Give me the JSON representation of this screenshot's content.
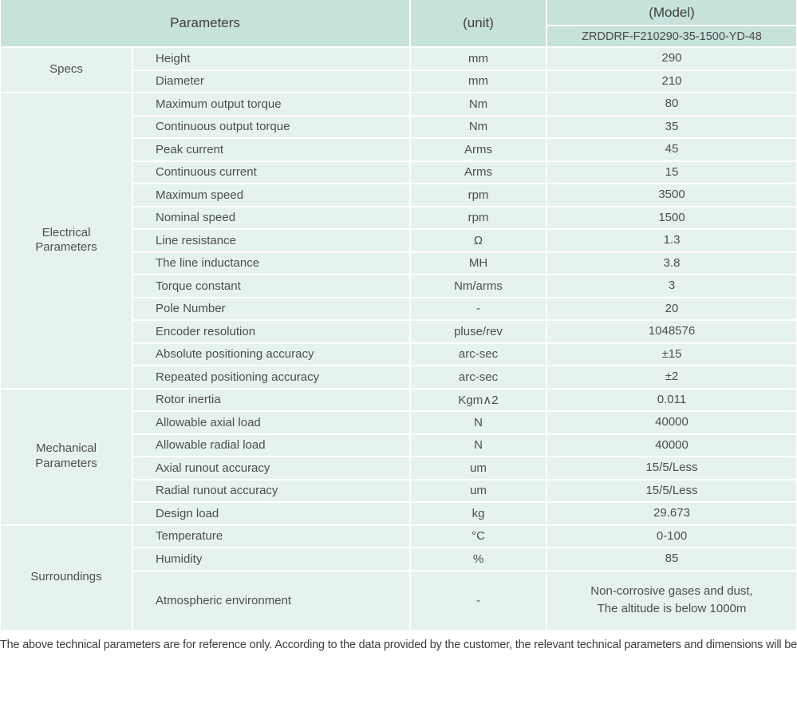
{
  "table": {
    "header": {
      "parameters": "Parameters",
      "unit": "(unit)",
      "model": "(Model)",
      "model_value": "ZRDDRF-F210290-35-1500-YD-48"
    },
    "groups": [
      {
        "name": "Specs",
        "rows": [
          {
            "parameter": "Height",
            "unit": "mm",
            "value": "290"
          },
          {
            "parameter": "Diameter",
            "unit": "mm",
            "value": "210"
          }
        ]
      },
      {
        "name": "Electrical Parameters",
        "rows": [
          {
            "parameter": "Maximum output torque",
            "unit": "Nm",
            "value": "80"
          },
          {
            "parameter": "Continuous output torque",
            "unit": "Nm",
            "value": "35"
          },
          {
            "parameter": "Peak current",
            "unit": "Arms",
            "value": "45"
          },
          {
            "parameter": "Continuous current",
            "unit": "Arms",
            "value": "15"
          },
          {
            "parameter": "Maximum speed",
            "unit": "rpm",
            "value": "3500"
          },
          {
            "parameter": "Nominal speed",
            "unit": "rpm",
            "value": "1500"
          },
          {
            "parameter": "Line resistance",
            "unit": "Ω",
            "value": "1.3"
          },
          {
            "parameter": "The line inductance",
            "unit": "MH",
            "value": "3.8"
          },
          {
            "parameter": "Torque constant",
            "unit": "Nm/arms",
            "value": "3"
          },
          {
            "parameter": "Pole Number",
            "unit": "-",
            "value": "20"
          },
          {
            "parameter": "Encoder resolution",
            "unit": "pluse/rev",
            "value": "1048576"
          },
          {
            "parameter": "Absolute positioning accuracy",
            "unit": "arc-sec",
            "value": "±15"
          },
          {
            "parameter": "Repeated positioning accuracy",
            "unit": "arc-sec",
            "value": "±2"
          }
        ]
      },
      {
        "name": "Mechanical Parameters",
        "rows": [
          {
            "parameter": "Rotor inertia",
            "unit": "Kgm∧2",
            "value": "0.011"
          },
          {
            "parameter": "Allowable axial load",
            "unit": "N",
            "value": "40000"
          },
          {
            "parameter": "Allowable radial load",
            "unit": "N",
            "value": "40000"
          },
          {
            "parameter": "Axial runout accuracy",
            "unit": "um",
            "value": "15/5/Less"
          },
          {
            "parameter": "Radial runout accuracy",
            "unit": "um",
            "value": "15/5/Less"
          },
          {
            "parameter": "Design load",
            "unit": "kg",
            "value": "29.673"
          }
        ]
      },
      {
        "name": "Surroundings",
        "rows": [
          {
            "parameter": "Temperature",
            "unit": "°C",
            "value": "0-100"
          },
          {
            "parameter": "Humidity",
            "unit": "%",
            "value": "85"
          },
          {
            "parameter": "Atmospheric environment",
            "unit": "-",
            "value": "Non-corrosive gases and dust,\nThe altitude is below 1000m",
            "tall": true
          }
        ]
      }
    ],
    "footer": "The above technical parameters are for reference only. According to the data provided by the customer, the relevant technical parameters and dimensions will be issued."
  },
  "colors": {
    "header_bg": "#c7e1db",
    "row_bg": "#e6f2f0",
    "separator": "#ffffff",
    "text": "#4e4e4e"
  }
}
